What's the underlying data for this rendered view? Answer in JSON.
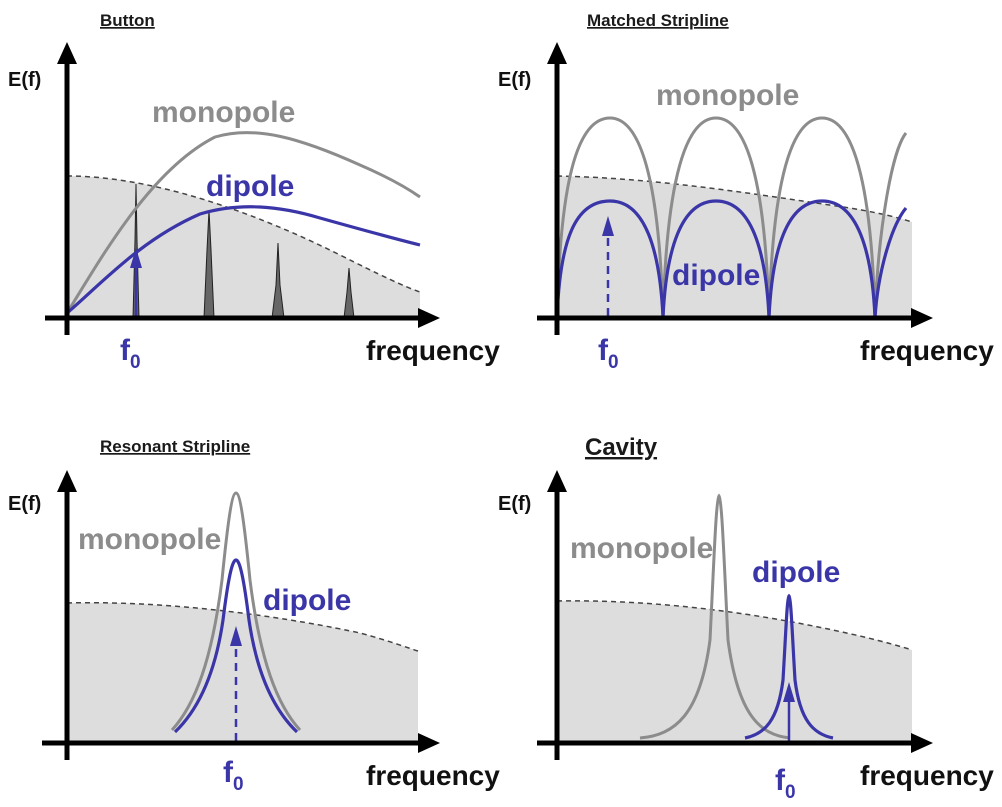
{
  "panels": [
    {
      "title": "Button",
      "y_label": "E(f)",
      "x_label": "frequency",
      "monopole_label": "monopole",
      "dipole_label": "dipole",
      "f0_label": "f",
      "f0_sub": "0"
    },
    {
      "title": "Matched Stripline",
      "y_label": "E(f)",
      "x_label": "frequency",
      "monopole_label": "monopole",
      "dipole_label": "dipole",
      "f0_label": "f",
      "f0_sub": "0"
    },
    {
      "title": "Resonant Stripline",
      "y_label": "E(f)",
      "x_label": "frequency",
      "monopole_label": "monopole",
      "dipole_label": "dipole",
      "f0_label": "f",
      "f0_sub": "0"
    },
    {
      "title": "Cavity",
      "y_label": "E(f)",
      "x_label": "frequency",
      "monopole_label": "monopole",
      "dipole_label": "dipole",
      "f0_label": "f",
      "f0_sub": "0"
    }
  ],
  "colors": {
    "monopole": "#8c8c8c",
    "dipole": "#3b36a8",
    "beam_spectrum_fill": "#dddddd",
    "axis": "#000000"
  }
}
